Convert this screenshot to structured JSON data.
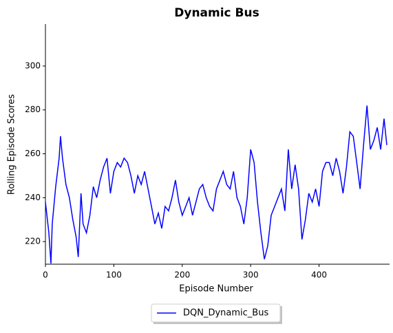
{
  "chart_data": {
    "type": "line",
    "title": "Dynamic Bus",
    "xlabel": "Episode Number",
    "ylabel": "Rolling Episode Scores",
    "x": [
      0,
      5,
      8,
      10,
      15,
      20,
      22,
      25,
      30,
      35,
      40,
      45,
      48,
      52,
      55,
      60,
      65,
      70,
      75,
      80,
      85,
      90,
      95,
      100,
      105,
      110,
      115,
      120,
      125,
      130,
      135,
      140,
      145,
      150,
      155,
      160,
      165,
      170,
      175,
      180,
      185,
      190,
      195,
      200,
      205,
      210,
      215,
      220,
      225,
      230,
      235,
      240,
      245,
      250,
      255,
      260,
      265,
      270,
      275,
      280,
      285,
      290,
      295,
      300,
      305,
      310,
      315,
      320,
      325,
      330,
      335,
      340,
      345,
      350,
      355,
      360,
      365,
      370,
      375,
      380,
      385,
      390,
      395,
      400,
      405,
      410,
      415,
      420,
      425,
      430,
      435,
      440,
      445,
      450,
      455,
      460,
      465,
      470,
      475,
      480,
      485,
      490,
      495,
      499
    ],
    "series": [
      {
        "name": "DQN_Dynamic_Bus",
        "color": "#0000ff",
        "values": [
          238,
          224,
          210,
          228,
          245,
          258,
          268,
          258,
          246,
          240,
          230,
          222,
          213,
          242,
          228,
          224,
          232,
          245,
          240,
          248,
          254,
          258,
          242,
          252,
          256,
          254,
          258,
          256,
          250,
          242,
          250,
          246,
          252,
          244,
          236,
          228,
          233,
          226,
          236,
          234,
          240,
          248,
          238,
          232,
          236,
          240,
          232,
          238,
          244,
          246,
          240,
          236,
          234,
          244,
          248,
          252,
          246,
          244,
          252,
          240,
          236,
          228,
          240,
          262,
          256,
          238,
          224,
          212,
          218,
          232,
          236,
          240,
          244,
          234,
          262,
          244,
          255,
          244,
          221,
          230,
          242,
          238,
          244,
          236,
          252,
          256,
          256,
          250,
          258,
          252,
          242,
          254,
          270,
          268,
          256,
          244,
          264,
          282,
          262,
          266,
          272,
          262,
          276,
          264
        ]
      }
    ],
    "xlim": [
      0,
      499
    ],
    "ylim": [
      209.7,
      319.1
    ],
    "xticks": [
      0,
      100,
      200,
      300,
      400
    ],
    "yticks": [
      220,
      240,
      260,
      280,
      300
    ],
    "legend": "lower center"
  }
}
